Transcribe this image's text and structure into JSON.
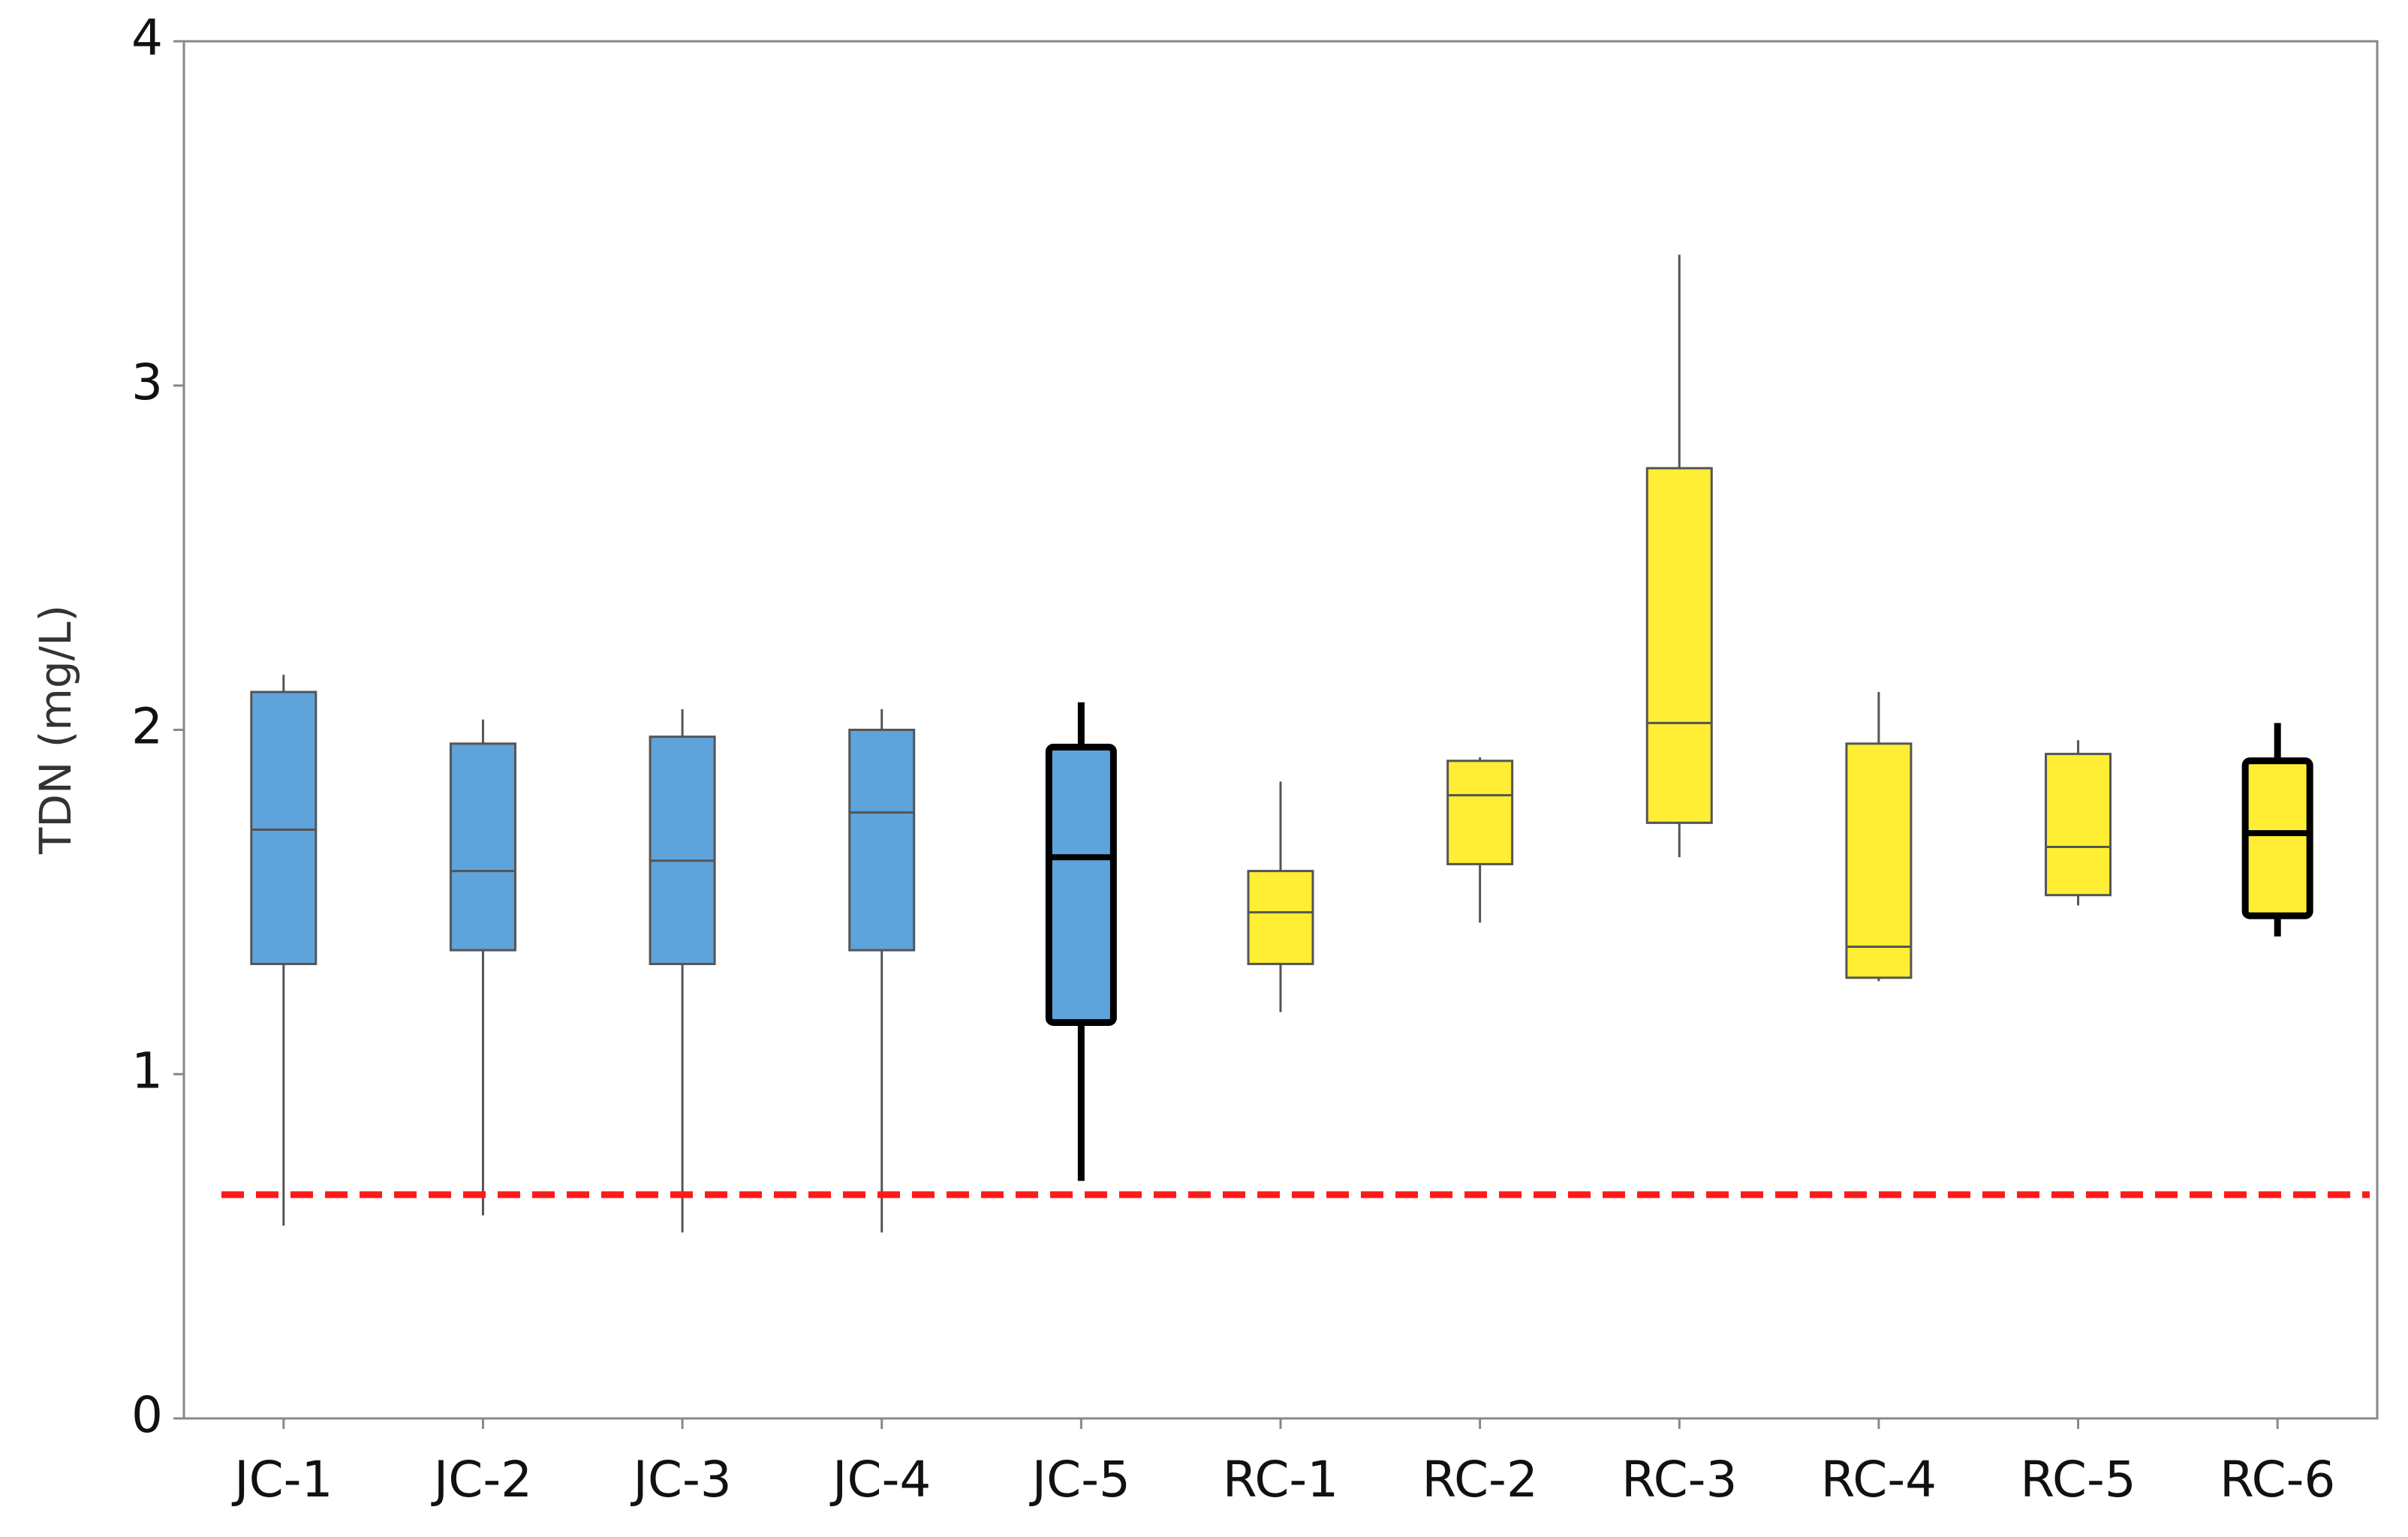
{
  "chart_data": {
    "type": "box",
    "y_label": "TDN (mg/L)",
    "categories": [
      "JC-1",
      "JC-2",
      "JC-3",
      "JC-4",
      "JC-5",
      "RC-1",
      "RC-2",
      "RC-3",
      "RC-4",
      "RC-5",
      "RC-6"
    ],
    "min": [
      0.56,
      0.59,
      0.54,
      0.54,
      0.69,
      1.18,
      1.44,
      1.63,
      1.27,
      1.49,
      1.4
    ],
    "q1": [
      1.32,
      1.36,
      1.32,
      1.36,
      1.15,
      1.32,
      1.61,
      1.73,
      1.28,
      1.52,
      1.46
    ],
    "median": [
      1.71,
      1.59,
      1.62,
      1.76,
      1.63,
      1.47,
      1.81,
      2.02,
      1.37,
      1.66,
      1.7
    ],
    "q3": [
      2.11,
      1.96,
      1.98,
      2.0,
      1.95,
      1.59,
      1.91,
      2.76,
      1.96,
      1.93,
      1.91
    ],
    "max": [
      2.16,
      2.03,
      2.06,
      2.06,
      2.08,
      1.85,
      1.92,
      3.38,
      2.11,
      1.97,
      2.02
    ],
    "colors": [
      "#5fa3db",
      "#5fa3db",
      "#5fa3db",
      "#5fa3db",
      "#5fa3db",
      "#ffee33",
      "#ffee33",
      "#ffee33",
      "#ffee33",
      "#ffee33",
      "#ffee33"
    ],
    "bold_outline": [
      false,
      false,
      false,
      false,
      true,
      false,
      false,
      false,
      false,
      false,
      true
    ],
    "reference_line": {
      "value": 0.65,
      "color": "#ff1a1a",
      "style": "dashed"
    },
    "ylim": [
      0,
      4
    ],
    "yticks": [
      0,
      1,
      2,
      3,
      4
    ],
    "grid": false
  }
}
